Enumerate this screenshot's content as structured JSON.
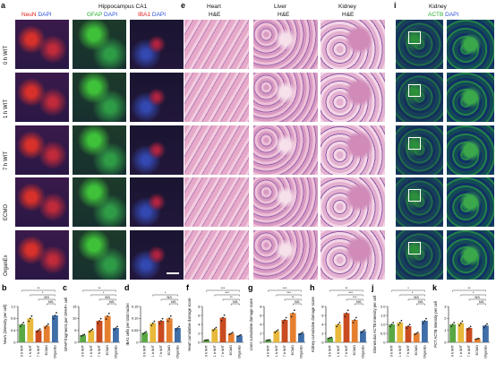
{
  "panel_letters": [
    "a",
    "e",
    "i",
    "b",
    "c",
    "d",
    "f",
    "g",
    "h",
    "j",
    "k"
  ],
  "panel_a": {
    "title": "Hippocampus CA1",
    "channels": [
      {
        "label": "NeuN",
        "color": "#e0231d"
      },
      {
        "label": "DAPI",
        "color": "#2b53d8"
      },
      {
        "label": "GFAP",
        "color": "#29b02f"
      },
      {
        "label": "DAPI",
        "color": "#2b53d8"
      },
      {
        "label": "IBA1",
        "color": "#e0231d"
      },
      {
        "label": "DAPI",
        "color": "#2b53d8"
      }
    ],
    "rows": [
      "0 h WIT",
      "1 h WIT",
      "7 h WIT",
      "ECMO",
      "OrganEx"
    ]
  },
  "panel_e": {
    "organs": [
      "Heart",
      "Liver",
      "Kidney"
    ],
    "stain": "H&E"
  },
  "panel_i": {
    "organ": "Kidney",
    "actb": "ACTB",
    "dapi": "DAPI"
  },
  "colors": {
    "neun_red": "#e0231d",
    "gfap_green": "#29b02f",
    "dapi_blue": "#2b53d8",
    "he_pink": "#e8a6c8",
    "he_purple": "#8a5ab0",
    "bar_0h": "#5aa844",
    "bar_1h": "#e8b93a",
    "bar_7h": "#c94b1f",
    "bar_ecmo": "#e57f2f",
    "bar_organex": "#3f6ea8"
  },
  "chart_data": [
    {
      "panel": "b",
      "type": "bar",
      "ylabel": "NeuN (intensity per cell)",
      "categories": [
        "0 h WIT",
        "1 h WIT",
        "7 h WIT",
        "ECMO",
        "OrganEx"
      ],
      "values": [
        0.6,
        0.8,
        0.4,
        0.55,
        0.9
      ],
      "ylim": [
        0,
        1.2
      ],
      "yticks": [
        "0",
        "0.4",
        "0.8",
        "1.2"
      ],
      "sig": [
        "NS",
        "NS",
        "*",
        "**"
      ]
    },
    {
      "panel": "c",
      "type": "bar",
      "ylabel": "GFAP fragments per GFAP+ cell",
      "categories": [
        "0 h WIT",
        "1 h WIT",
        "7 h WIT",
        "ECMO",
        "OrganEx"
      ],
      "values": [
        3,
        5,
        9,
        11,
        6
      ],
      "ylim": [
        0,
        15
      ],
      "yticks": [
        "0",
        "5",
        "10",
        "15"
      ],
      "sig": [
        "NS",
        "NS",
        "*",
        "**"
      ]
    },
    {
      "panel": "d",
      "type": "bar",
      "ylabel": "IBA1 cells per total nuclei",
      "categories": [
        "0 h WIT",
        "1 h WIT",
        "7 h WIT",
        "ECMO",
        "OrganEx"
      ],
      "values": [
        0.04,
        0.08,
        0.09,
        0.1,
        0.06
      ],
      "ylim": [
        0,
        0.15
      ],
      "yticks": [
        "0",
        "0.05",
        "0.10",
        "0.15"
      ],
      "sig": [
        "NS",
        "NS",
        "*"
      ]
    },
    {
      "panel": "f",
      "type": "bar",
      "ylabel": "Heart cumulative damage score",
      "categories": [
        "0 h WIT",
        "1 h WIT",
        "7 h WIT",
        "ECMO",
        "OrganEx"
      ],
      "values": [
        0.5,
        3,
        5.5,
        2,
        1.5
      ],
      "ylim": [
        0,
        8
      ],
      "yticks": [
        "0",
        "2",
        "4",
        "6",
        "8"
      ],
      "sig": [
        "NS",
        "**",
        "***",
        "***"
      ]
    },
    {
      "panel": "g",
      "type": "bar",
      "ylabel": "Liver cumulative damage score",
      "categories": [
        "0 h WIT",
        "1 h WIT",
        "7 h WIT",
        "ECMO",
        "OrganEx"
      ],
      "values": [
        0.5,
        2.5,
        5,
        6.5,
        2
      ],
      "ylim": [
        0,
        8
      ],
      "yticks": [
        "0",
        "2",
        "4",
        "6",
        "8"
      ],
      "sig": [
        "NS",
        "**",
        "***",
        "***"
      ]
    },
    {
      "panel": "h",
      "type": "bar",
      "ylabel": "Kidney cumulative damage score",
      "categories": [
        "0 h WIT",
        "1 h WIT",
        "7 h WIT",
        "ECMO",
        "OrganEx"
      ],
      "values": [
        1,
        4,
        6.5,
        5,
        2.5
      ],
      "ylim": [
        0,
        8
      ],
      "yticks": [
        "0",
        "2",
        "4",
        "6",
        "8"
      ],
      "sig": [
        "NS",
        "***",
        "***",
        "**"
      ]
    },
    {
      "panel": "j",
      "type": "bar",
      "ylabel": "Glomerulus ACTB intensity per cell",
      "categories": [
        "0 h WIT",
        "1 h WIT",
        "7 h WIT",
        "ECMO",
        "OrganEx"
      ],
      "values": [
        1.0,
        1.1,
        0.9,
        0.5,
        1.2
      ],
      "ylim": [
        0,
        2
      ],
      "yticks": [
        "0",
        "0.5",
        "1.0",
        "1.5",
        "2.0"
      ],
      "sig": [
        "NS",
        "NS",
        "*",
        "*"
      ]
    },
    {
      "panel": "k",
      "type": "bar",
      "ylabel": "PCT ACTB intensity per cell",
      "categories": [
        "0 h WIT",
        "1 h WIT",
        "7 h WIT",
        "ECMO",
        "OrganEx"
      ],
      "values": [
        1.5,
        1.6,
        1.2,
        0.3,
        1.4
      ],
      "ylim": [
        0,
        3
      ],
      "yticks": [
        "0",
        "1",
        "2",
        "3"
      ],
      "sig": [
        "NS",
        "NS",
        "*",
        "**"
      ]
    }
  ]
}
